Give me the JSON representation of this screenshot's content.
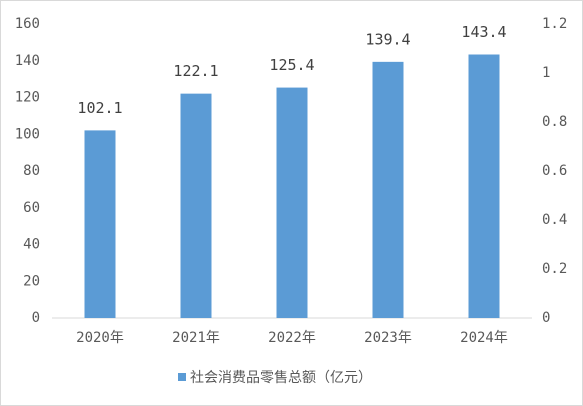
{
  "chart_data": {
    "type": "bar",
    "categories": [
      "2020年",
      "2021年",
      "2022年",
      "2023年",
      "2024年"
    ],
    "series": [
      {
        "name": "社会消费品零售总额（亿元）",
        "color": "#5b9bd5",
        "values": [
          102.1,
          122.1,
          125.4,
          139.4,
          143.4
        ]
      }
    ],
    "ylim": [
      0,
      160
    ],
    "yticks": [
      0,
      20,
      40,
      60,
      80,
      100,
      120,
      140,
      160
    ],
    "y2lim": [
      0,
      1.2
    ],
    "y2ticks": [
      0,
      0.2,
      0.4,
      0.6,
      0.8,
      1,
      1.2
    ],
    "legend": "bottom",
    "grid": false
  }
}
